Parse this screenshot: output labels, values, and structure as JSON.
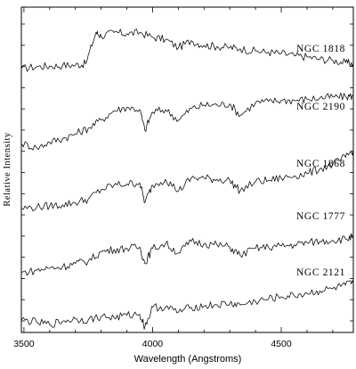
{
  "chart_data": {
    "type": "line",
    "title": "",
    "xlabel": "Wavelength (Angstroms)",
    "ylabel": "Relative Intensity",
    "xlim": [
      3490,
      4780
    ],
    "x_ticks": [
      3500,
      4000,
      4500
    ],
    "y_ticks_count": 15,
    "grid": false,
    "legend": "none (series labeled directly at right)",
    "series": [
      {
        "name": "NGC 1818",
        "x": [
          3490,
          3550,
          3600,
          3650,
          3700,
          3740,
          3780,
          3800,
          3850,
          3900,
          3950,
          4000,
          4050,
          4101,
          4150,
          4200,
          4250,
          4300,
          4340,
          4400,
          4450,
          4500,
          4550,
          4600,
          4650,
          4700,
          4750,
          4780
        ],
        "y": [
          0.69,
          0.78,
          0.8,
          0.83,
          0.85,
          0.9,
          2.25,
          2.1,
          2.25,
          2.2,
          2.25,
          2.05,
          1.95,
          1.6,
          1.9,
          1.7,
          1.65,
          1.6,
          1.55,
          1.45,
          1.4,
          1.35,
          1.25,
          1.2,
          1.1,
          1.05,
          0.95,
          0.9
        ]
      },
      {
        "name": "NGC 2190",
        "x": [
          3490,
          3550,
          3600,
          3650,
          3700,
          3750,
          3800,
          3850,
          3900,
          3950,
          3970,
          4000,
          4050,
          4101,
          4150,
          4200,
          4250,
          4300,
          4340,
          4400,
          4450,
          4500,
          4550,
          4600,
          4650,
          4700,
          4750,
          4780
        ],
        "y": [
          0.55,
          0.35,
          0.6,
          0.75,
          0.95,
          1.2,
          1.55,
          1.95,
          2.1,
          2.0,
          1.1,
          1.9,
          2.0,
          1.55,
          2.05,
          2.2,
          2.2,
          2.25,
          1.75,
          2.3,
          2.35,
          2.4,
          2.4,
          2.45,
          2.5,
          2.55,
          2.55,
          2.6
        ]
      },
      {
        "name": "NGC 1868",
        "x": [
          3490,
          3550,
          3600,
          3650,
          3700,
          3750,
          3800,
          3850,
          3900,
          3950,
          3970,
          4000,
          4050,
          4101,
          4150,
          4200,
          4250,
          4300,
          4340,
          4400,
          4450,
          4500,
          4550,
          4600,
          4650,
          4700,
          4750,
          4780
        ],
        "y": [
          0.55,
          0.6,
          0.65,
          0.7,
          0.8,
          0.95,
          1.35,
          1.55,
          1.6,
          1.65,
          0.8,
          1.55,
          1.8,
          1.3,
          1.85,
          1.85,
          1.8,
          1.75,
          1.3,
          1.7,
          1.75,
          1.85,
          1.95,
          2.05,
          2.25,
          2.45,
          2.75,
          3.05
        ]
      },
      {
        "name": "NGC 1777",
        "x": [
          3490,
          3550,
          3600,
          3650,
          3700,
          3750,
          3800,
          3850,
          3900,
          3950,
          3970,
          4000,
          4050,
          4101,
          4150,
          4200,
          4250,
          4300,
          4340,
          4400,
          4450,
          4500,
          4550,
          4600,
          4650,
          4700,
          4750,
          4780
        ],
        "y": [
          0.35,
          0.45,
          0.55,
          0.6,
          0.75,
          0.85,
          1.25,
          1.35,
          1.4,
          1.45,
          0.75,
          1.4,
          1.6,
          1.2,
          1.7,
          1.6,
          1.55,
          1.45,
          1.1,
          1.4,
          1.45,
          1.5,
          1.55,
          1.65,
          1.7,
          1.75,
          1.8,
          1.9
        ]
      },
      {
        "name": "NGC 2121",
        "x": [
          3490,
          3550,
          3600,
          3650,
          3700,
          3750,
          3800,
          3850,
          3900,
          3950,
          3970,
          4000,
          4050,
          4101,
          4150,
          4200,
          4250,
          4300,
          4340,
          4400,
          4450,
          4500,
          4550,
          4600,
          4650,
          4700,
          4750,
          4780
        ],
        "y": [
          0.5,
          0.4,
          0.3,
          0.45,
          0.55,
          0.5,
          0.65,
          0.6,
          0.7,
          0.75,
          0.2,
          1.05,
          1.05,
          0.85,
          1.05,
          1.1,
          1.15,
          1.2,
          1.15,
          1.3,
          1.4,
          1.5,
          1.55,
          1.65,
          1.75,
          1.85,
          2.0,
          2.1
        ]
      }
    ]
  }
}
